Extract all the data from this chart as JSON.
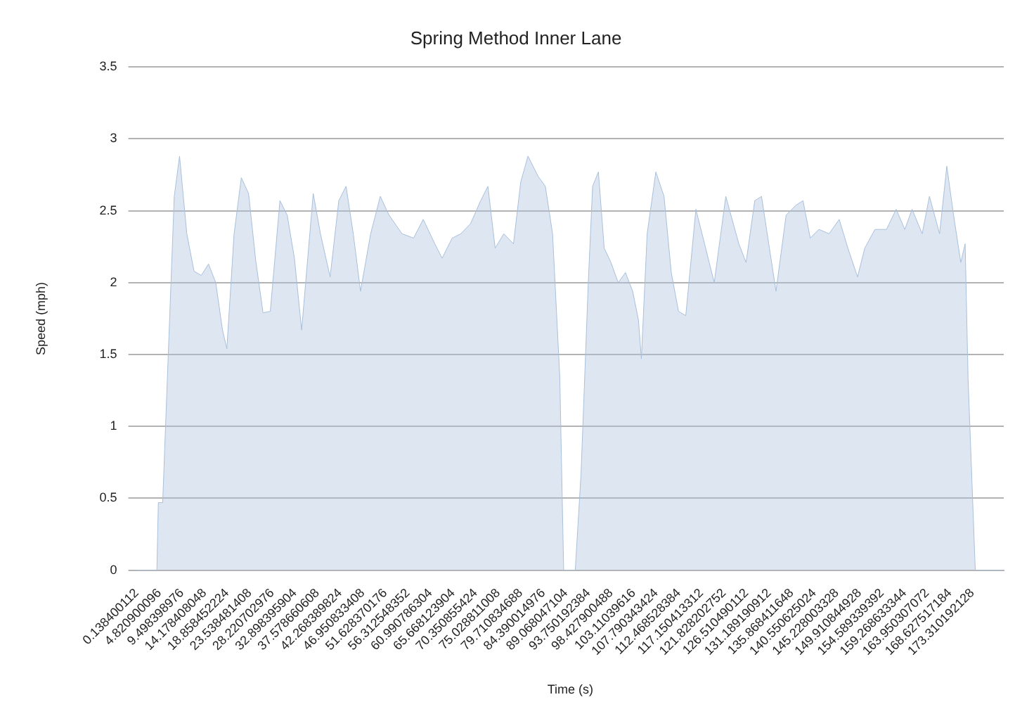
{
  "chart_data": {
    "type": "area",
    "title": "Spring Method Inner Lane",
    "xlabel": "Time (s)",
    "ylabel": "Speed (mph)",
    "x": [
      0.14,
      4.3,
      4.6,
      5.5,
      7.9,
      9.0,
      10.5,
      12.0,
      13.5,
      15.0,
      16.5,
      17.9,
      18.8,
      20.3,
      21.8,
      23.3,
      24.8,
      26.3,
      27.8,
      29.8,
      31.3,
      32.8,
      34.3,
      36.7,
      38.2,
      40.2,
      42.0,
      43.5,
      45.0,
      46.5,
      48.6,
      50.6,
      52.4,
      55.1,
      57.5,
      59.5,
      61.9,
      63.4,
      65.5,
      67.3,
      69.3,
      71.4,
      72.9,
      74.4,
      76.2,
      78.2,
      79.7,
      81.2,
      83.3,
      84.8,
      86.3,
      87.8,
      88.6,
      91.0,
      92.2,
      93.7,
      94.6,
      95.8,
      97.0,
      98.4,
      99.9,
      101.4,
      102.9,
      104.1,
      104.7,
      105.9,
      107.7,
      109.4,
      110.9,
      112.4,
      113.9,
      116.0,
      117.8,
      119.8,
      122.2,
      124.9,
      126.4,
      128.2,
      129.6,
      131.1,
      132.6,
      134.7,
      136.8,
      138.2,
      139.7,
      141.5,
      143.6,
      145.7,
      147.5,
      149.5,
      151.0,
      153.1,
      155.5,
      157.5,
      159.3,
      160.8,
      162.9,
      164.4,
      166.5,
      168.0,
      169.4,
      170.9,
      171.8,
      172.4,
      173.9,
      179.8
    ],
    "series": [
      {
        "color": "#a9c0dc",
        "values": [
          0,
          0,
          0.47,
          0.47,
          2.6,
          2.88,
          2.34,
          2.08,
          2.05,
          2.13,
          2.0,
          1.67,
          1.54,
          2.34,
          2.73,
          2.62,
          2.15,
          1.79,
          1.8,
          2.57,
          2.47,
          2.17,
          1.67,
          2.62,
          2.34,
          2.04,
          2.57,
          2.67,
          2.34,
          1.94,
          2.34,
          2.6,
          2.47,
          2.34,
          2.31,
          2.44,
          2.27,
          2.17,
          2.31,
          2.34,
          2.41,
          2.57,
          2.67,
          2.24,
          2.34,
          2.27,
          2.7,
          2.88,
          2.74,
          2.67,
          2.34,
          1.34,
          0,
          0,
          0.67,
          2.0,
          2.67,
          2.77,
          2.24,
          2.14,
          2.0,
          2.07,
          1.94,
          1.74,
          1.47,
          2.34,
          2.77,
          2.6,
          2.07,
          1.8,
          1.77,
          2.51,
          2.27,
          2.0,
          2.6,
          2.27,
          2.14,
          2.57,
          2.6,
          2.27,
          1.94,
          2.47,
          2.54,
          2.57,
          2.31,
          2.37,
          2.34,
          2.44,
          2.24,
          2.04,
          2.24,
          2.37,
          2.37,
          2.51,
          2.37,
          2.51,
          2.34,
          2.6,
          2.34,
          2.81,
          2.47,
          2.14,
          2.27,
          1.34,
          0,
          0
        ]
      }
    ],
    "xlim": [
      0.138400112,
      179.8
    ],
    "xticks": [
      0.138400112,
      4.820900096,
      9.498398976,
      14.178408048,
      18.858452224,
      23.538481408,
      28.220702976,
      32.898395904,
      37.578660608,
      42.268389824,
      46.950833408,
      51.628370176,
      56.312548352,
      60.990786304,
      65.668123904,
      70.350855424,
      75.028811008,
      79.710834688,
      84.390014976,
      89.068047104,
      93.750192384,
      98.427900488,
      103.11039616,
      107.790343424,
      112.468528384,
      117.150413312,
      121.828202752,
      126.510490112,
      131.189190912,
      135.868411648,
      140.550625024,
      145.228003328,
      149.910844928,
      154.589339392,
      159.268633344,
      163.950307072,
      168.627517184,
      173.310192128
    ],
    "ylim": [
      0,
      3.5
    ],
    "yticks": [
      0,
      0.5,
      1,
      1.5,
      2,
      2.5,
      3,
      3.5
    ],
    "grid": "y",
    "legend": false,
    "marker": "none"
  }
}
